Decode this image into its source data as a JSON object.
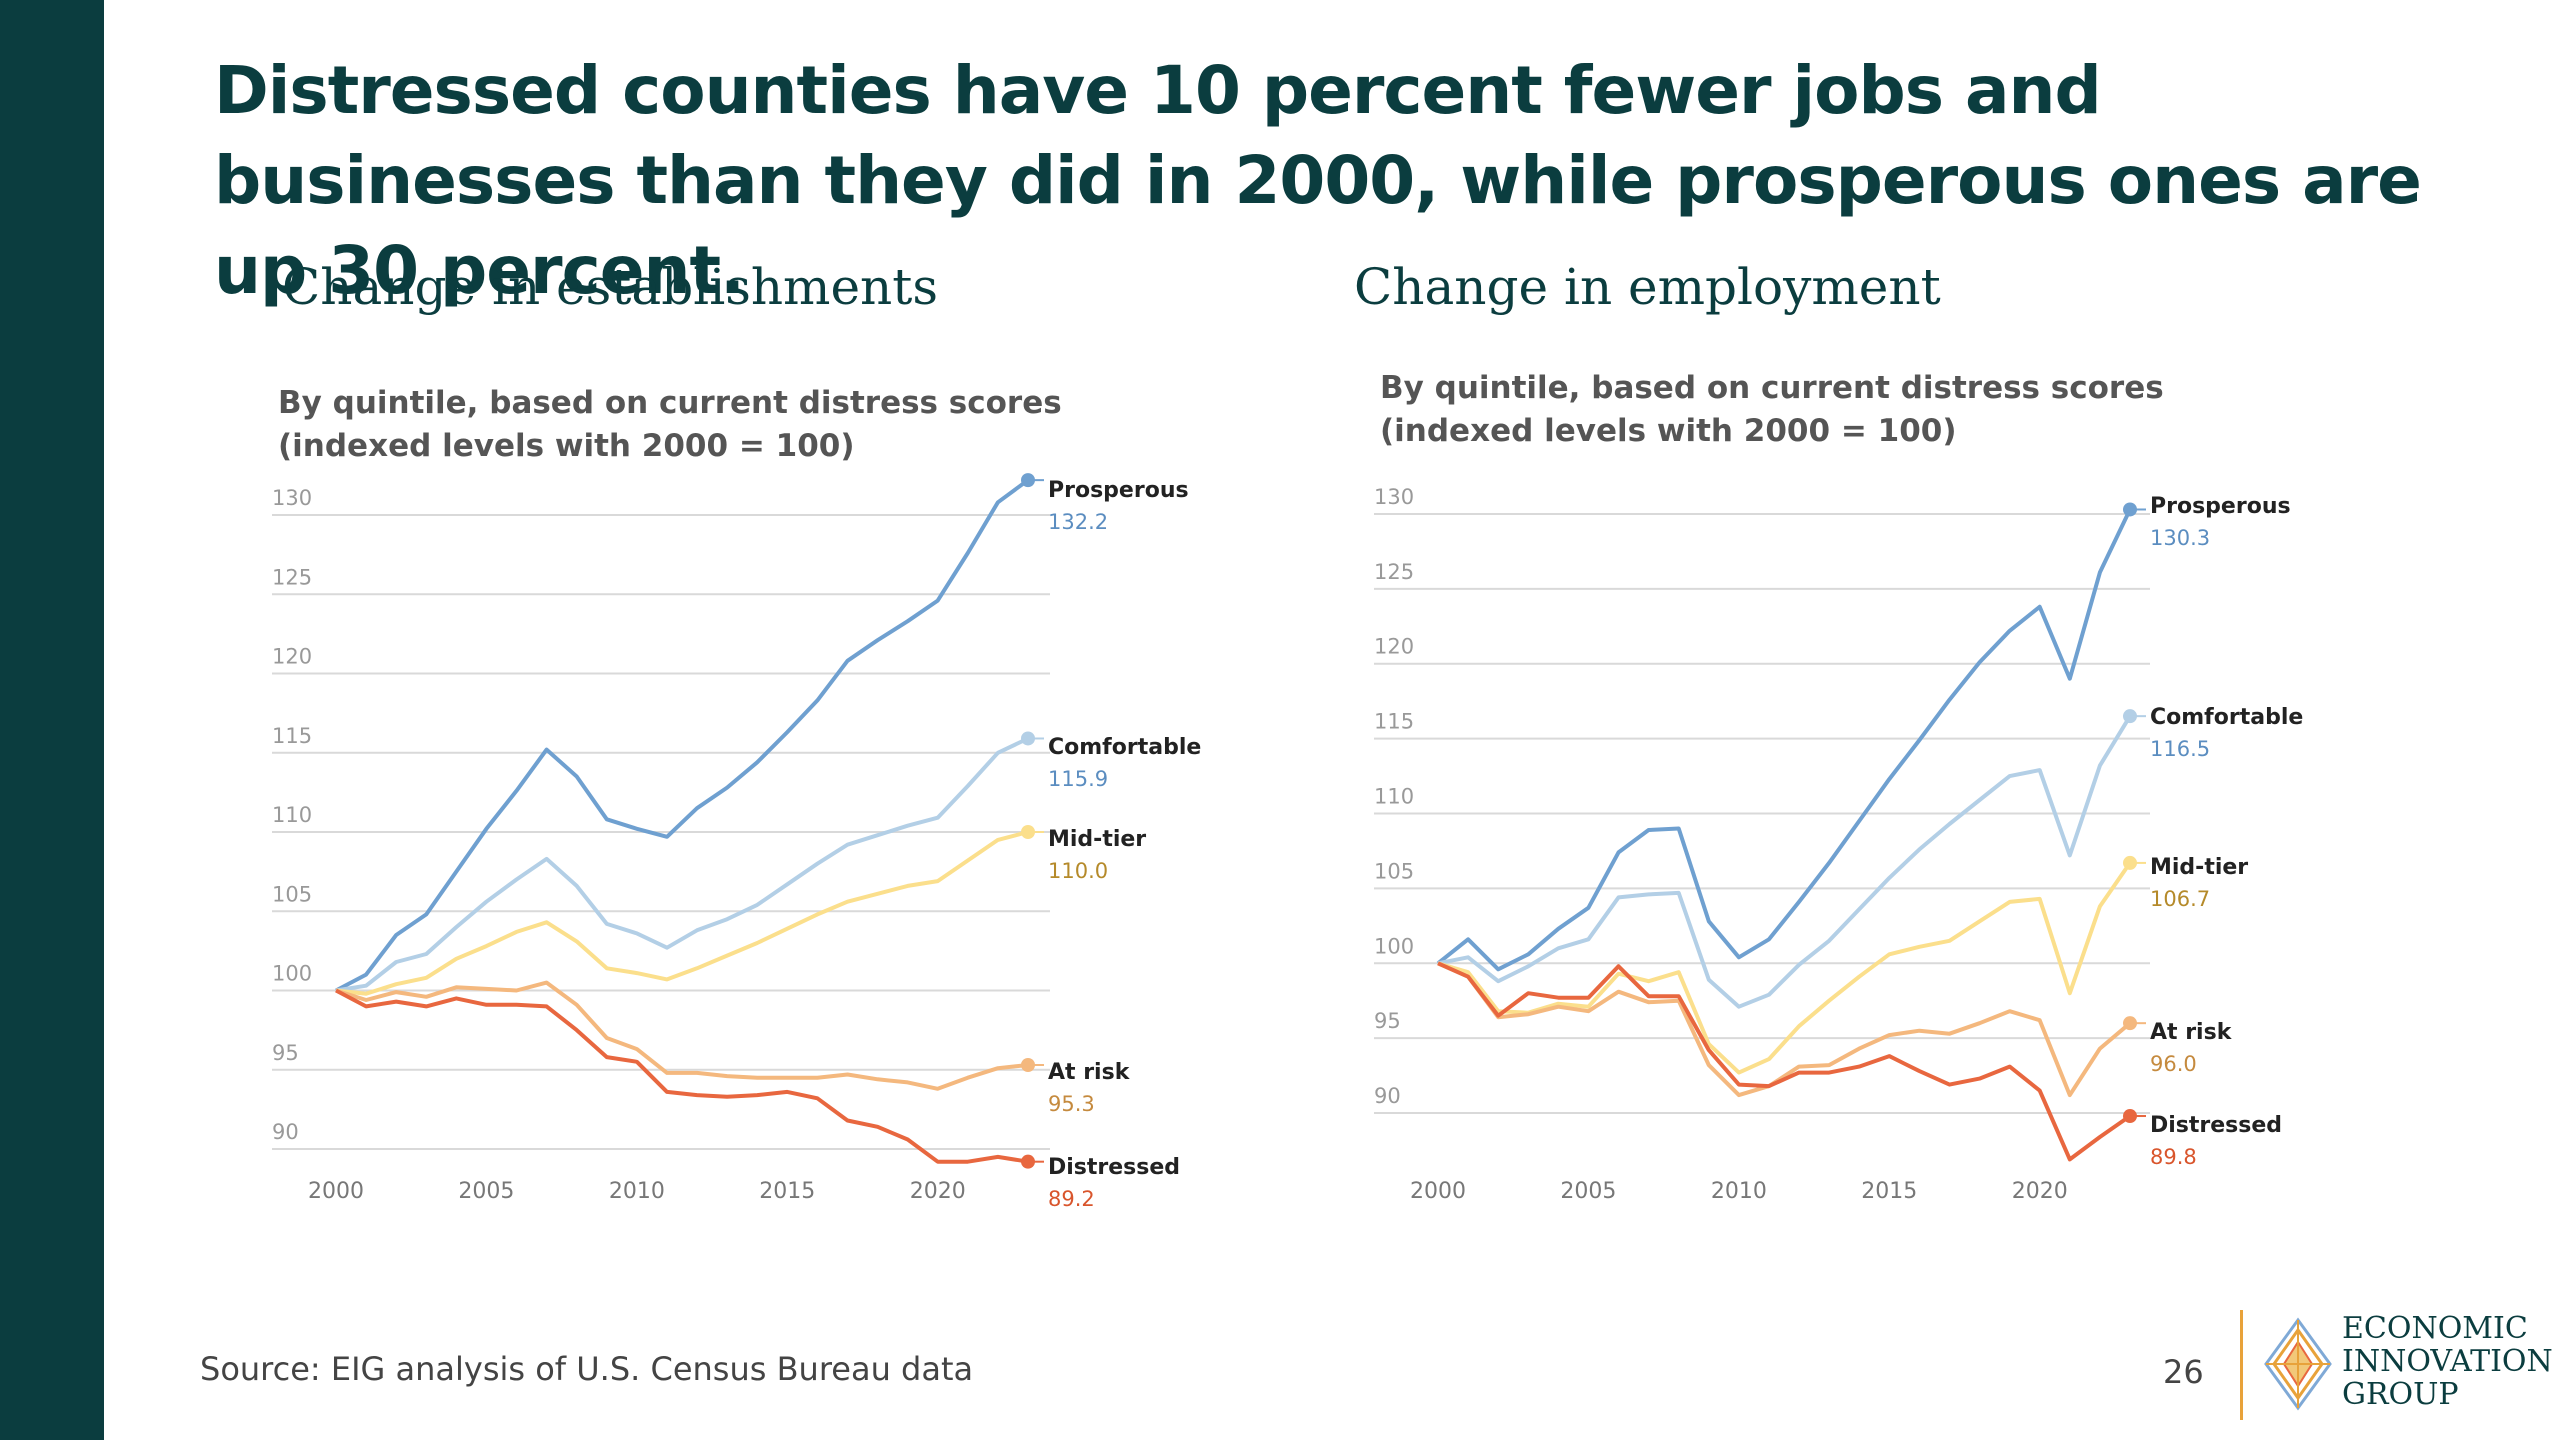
{
  "headline": "Distressed counties have 10 percent fewer jobs and businesses than they did in 2000, while prosperous ones are up 30 percent.",
  "source": "Source: EIG analysis of U.S. Census Bureau data",
  "page_number": "26",
  "logo": {
    "line1": "ECONOMIC",
    "line2": "INNOVATION",
    "line3": "GROUP",
    "mark_icon": "eig-diamond-logo-icon"
  },
  "colors": {
    "sidebar": "#0b3d3f",
    "heading": "#0b3d3f",
    "prosperous": "#6fa0d0",
    "comfortable": "#b3cfe6",
    "mid_tier": "#fbdf8c",
    "at_risk": "#f4b87e",
    "distressed": "#e8673f",
    "value_prosperous": "#5b8dc0",
    "value_mid_tier": "#b58a2a",
    "value_at_risk": "#c58a3e",
    "value_distressed": "#d9552c",
    "grid": "#d9d9d9",
    "tick": "#999999"
  },
  "chart_data": [
    {
      "type": "line",
      "panel_title": "Change in establishments",
      "subtitle_line1": "By quintile, based on current distress scores",
      "subtitle_line2": "(indexed levels with 2000 = 100)",
      "x": [
        2000,
        2001,
        2002,
        2003,
        2004,
        2005,
        2006,
        2007,
        2008,
        2009,
        2010,
        2011,
        2012,
        2013,
        2014,
        2015,
        2016,
        2017,
        2018,
        2019,
        2020,
        2021,
        2022,
        2023
      ],
      "xticks": [
        "2000",
        "2005",
        "2010",
        "2015",
        "2020"
      ],
      "yticks": [
        "90",
        "95",
        "100",
        "105",
        "110",
        "115",
        "120",
        "125",
        "130"
      ],
      "ylim": [
        90,
        130
      ],
      "grid": true,
      "legend_placement": "end-of-line labels",
      "series": [
        {
          "name": "Prosperous",
          "end_label": "132.2",
          "color_key": "prosperous",
          "value_color_key": "value_prosperous",
          "values": [
            100,
            101,
            103.5,
            104.8,
            107.5,
            110.2,
            112.6,
            115.2,
            113.5,
            110.8,
            110.2,
            109.7,
            111.5,
            112.8,
            114.4,
            116.3,
            118.3,
            120.8,
            122.1,
            123.3,
            124.6,
            127.6,
            130.8,
            132.2
          ]
        },
        {
          "name": "Comfortable",
          "end_label": "115.9",
          "color_key": "comfortable",
          "value_color_key": "value_prosperous",
          "values": [
            100,
            100.3,
            101.8,
            102.3,
            104,
            105.6,
            107,
            108.3,
            106.6,
            104.2,
            103.6,
            102.7,
            103.8,
            104.5,
            105.4,
            106.7,
            108,
            109.2,
            109.8,
            110.4,
            110.9,
            112.9,
            115,
            115.9
          ]
        },
        {
          "name": "Mid-tier",
          "end_label": "110.0",
          "color_key": "mid_tier",
          "value_color_key": "value_mid_tier",
          "values": [
            100,
            99.8,
            100.4,
            100.8,
            102,
            102.8,
            103.7,
            104.3,
            103.1,
            101.4,
            101.1,
            100.7,
            101.4,
            102.2,
            103,
            103.9,
            104.8,
            105.6,
            106.1,
            106.6,
            106.9,
            108.2,
            109.5,
            110.0
          ]
        },
        {
          "name": "At risk",
          "end_label": "95.3",
          "color_key": "at_risk",
          "value_color_key": "value_at_risk",
          "values": [
            100,
            99.4,
            99.9,
            99.6,
            100.2,
            100.1,
            100,
            100.5,
            99.1,
            97,
            96.3,
            94.8,
            94.8,
            94.6,
            94.5,
            94.5,
            94.5,
            94.7,
            94.4,
            94.2,
            93.8,
            94.5,
            95.1,
            95.3
          ]
        },
        {
          "name": "Distressed",
          "end_label": "89.2",
          "color_key": "distressed",
          "value_color_key": "value_distressed",
          "values": [
            100,
            99,
            99.3,
            99,
            99.5,
            99.1,
            99.1,
            99,
            97.5,
            95.8,
            95.5,
            93.6,
            93.4,
            93.3,
            93.4,
            93.6,
            93.2,
            91.8,
            91.4,
            90.6,
            89.2,
            89.2,
            89.5,
            89.2
          ]
        }
      ]
    },
    {
      "type": "line",
      "panel_title": "Change in employment",
      "subtitle_line1": "By quintile, based on current distress scores",
      "subtitle_line2": "(indexed levels with 2000 = 100)",
      "x": [
        2000,
        2001,
        2002,
        2003,
        2004,
        2005,
        2006,
        2007,
        2008,
        2009,
        2010,
        2011,
        2012,
        2013,
        2014,
        2015,
        2016,
        2017,
        2018,
        2019,
        2020,
        2021,
        2022,
        2023
      ],
      "xticks": [
        "2000",
        "2005",
        "2010",
        "2015",
        "2020"
      ],
      "yticks": [
        "90",
        "95",
        "100",
        "105",
        "110",
        "115",
        "120",
        "125",
        "130"
      ],
      "ylim": [
        89,
        131
      ],
      "grid": true,
      "legend_placement": "end-of-line labels",
      "series": [
        {
          "name": "Prosperous",
          "end_label": "130.3",
          "color_key": "prosperous",
          "value_color_key": "value_prosperous",
          "values": [
            100,
            101.6,
            99.6,
            100.6,
            102.3,
            103.7,
            107.4,
            108.9,
            109,
            102.8,
            100.4,
            101.6,
            104.1,
            106.7,
            109.5,
            112.3,
            114.9,
            117.6,
            120.1,
            122.2,
            123.8,
            119,
            126.1,
            130.3
          ]
        },
        {
          "name": "Comfortable",
          "end_label": "116.5",
          "color_key": "comfortable",
          "value_color_key": "value_prosperous",
          "values": [
            100,
            100.4,
            98.8,
            99.8,
            101,
            101.6,
            104.4,
            104.6,
            104.7,
            98.9,
            97.1,
            97.9,
            99.9,
            101.5,
            103.6,
            105.7,
            107.6,
            109.3,
            110.9,
            112.5,
            112.9,
            107.2,
            113.2,
            116.5
          ]
        },
        {
          "name": "Mid-tier",
          "end_label": "106.7",
          "color_key": "mid_tier",
          "value_color_key": "value_mid_tier",
          "values": [
            100,
            99.4,
            96.8,
            96.7,
            97.3,
            97.1,
            99.3,
            98.8,
            99.4,
            94.6,
            92.7,
            93.6,
            95.8,
            97.5,
            99.1,
            100.6,
            101.1,
            101.5,
            102.8,
            104.1,
            104.3,
            98,
            103.8,
            106.7
          ]
        },
        {
          "name": "At risk",
          "end_label": "96.0",
          "color_key": "at_risk",
          "value_color_key": "value_at_risk",
          "values": [
            100,
            99.1,
            96.4,
            96.6,
            97.1,
            96.8,
            98.1,
            97.4,
            97.5,
            93.2,
            91.2,
            91.8,
            93.1,
            93.2,
            94.3,
            95.2,
            95.5,
            95.3,
            96,
            96.8,
            96.2,
            91.2,
            94.3,
            96.0
          ]
        },
        {
          "name": "Distressed",
          "end_label": "89.8",
          "color_key": "distressed",
          "value_color_key": "value_distressed",
          "values": [
            100,
            99.1,
            96.5,
            98,
            97.7,
            97.7,
            99.8,
            97.8,
            97.8,
            94.2,
            91.9,
            91.8,
            92.7,
            92.7,
            93.1,
            93.8,
            92.8,
            91.9,
            92.3,
            93.1,
            91.5,
            86.9,
            88.4,
            89.8
          ]
        }
      ]
    }
  ]
}
